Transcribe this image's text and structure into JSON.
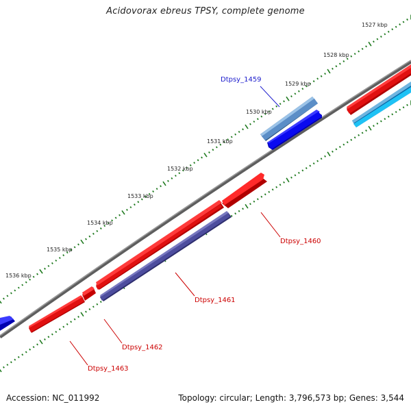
{
  "map": {
    "title": "Acidovorax ebreus TPSY, complete genome",
    "accession_text": "Accession: NC_011992",
    "summary_text": "Topology: circular; Length: 3,796,573 bp; Genes: 3,544",
    "topology": "circular",
    "length_bp": 3796573,
    "gene_count": 3544
  },
  "ruler": {
    "unit": "kbp",
    "tick_color": "#1f7a1f",
    "labels": [
      "1527 kbp",
      "1528 kbp",
      "1529 kbp",
      "1530 kbp",
      "1531 kbp",
      "1532 kbp",
      "1533 kbp",
      "1534 kbp",
      "1535 kbp",
      "1536 kbp"
    ]
  },
  "backbone": {
    "color": "#808080"
  },
  "genes": [
    {
      "id": "Dtpsy_1459",
      "label": "Dtpsy_1459",
      "label_color": "#1a1acc",
      "color": "#5b8ec7",
      "strand": "forward",
      "track": "outer-2"
    },
    {
      "id": "Dtpsy_1460",
      "label": "Dtpsy_1460",
      "label_color": "#cc0000",
      "color": "#ee1111",
      "strand": "forward",
      "track": "outer-1"
    },
    {
      "id": "Dtpsy_1461",
      "label": "Dtpsy_1461",
      "label_color": "#cc0000",
      "color": "#4a4a9a",
      "strand": "reverse",
      "track": "inner-1"
    },
    {
      "id": "Dtpsy_1462",
      "label": "Dtpsy_1462",
      "label_color": "#cc0000",
      "color": "#ee1111",
      "strand": "forward",
      "track": "outer-1"
    },
    {
      "id": "Dtpsy_1463",
      "label": "Dtpsy_1463",
      "label_color": "#cc0000",
      "color": "#ee1111",
      "strand": "forward",
      "track": "outer-1"
    }
  ],
  "unlabeled_features": [
    {
      "color": "#0000ee",
      "strand": "forward",
      "track": "inner-1"
    },
    {
      "color": "#ee1111",
      "strand": "forward",
      "track": "outer-1"
    },
    {
      "color": "#5b8ec7",
      "strand": "forward",
      "track": "outer-2"
    },
    {
      "color": "#22bbee",
      "strand": "reverse",
      "track": "inner-1"
    },
    {
      "color": "#0000ee",
      "strand": "forward",
      "track": "inner-1"
    }
  ]
}
